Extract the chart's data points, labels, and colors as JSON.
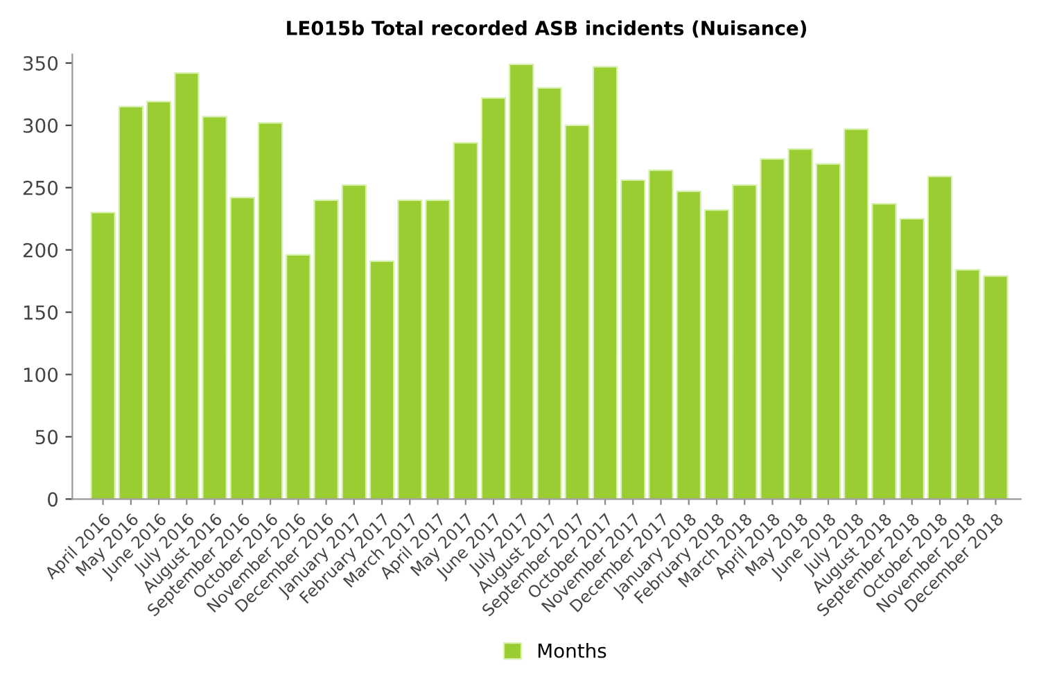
{
  "chart_data": {
    "type": "bar",
    "title": "LE015b Total recorded ASB incidents (Nuisance)",
    "categories": [
      "April 2016",
      "May 2016",
      "June 2016",
      "July 2016",
      "August 2016",
      "September 2016",
      "October 2016",
      "November 2016",
      "December 2016",
      "January 2017",
      "February 2017",
      "March 2017",
      "April 2017",
      "May 2017",
      "June 2017",
      "July 2017",
      "August 2017",
      "September 2017",
      "October 2017",
      "November 2017",
      "December 2017",
      "January 2018",
      "February 2018",
      "March 2018",
      "April 2018",
      "May 2018",
      "June 2018",
      "July 2018",
      "August 2018",
      "September 2018",
      "October 2018",
      "November 2018",
      "December 2018"
    ],
    "series": [
      {
        "name": "Months",
        "color": "#9acd32",
        "values": [
          230,
          315,
          319,
          342,
          307,
          242,
          302,
          196,
          240,
          252,
          191,
          240,
          240,
          286,
          322,
          349,
          330,
          300,
          347,
          256,
          264,
          247,
          232,
          252,
          273,
          281,
          269,
          297,
          237,
          225,
          259,
          184,
          179
        ]
      }
    ],
    "ylim": [
      0,
      357
    ],
    "yticks": [
      0,
      50,
      100,
      150,
      200,
      250,
      300,
      350
    ],
    "grid": false,
    "legend": "bottom"
  }
}
